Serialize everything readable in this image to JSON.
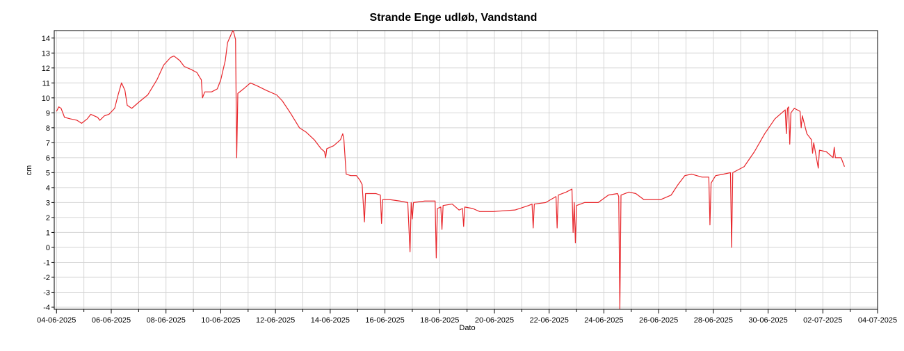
{
  "chart_data": {
    "type": "line",
    "title": "Strande Enge udløb, Vandstand",
    "x_label": "Dato",
    "y_label": "cm",
    "grid": true,
    "xlim": [
      "2025-06-03T22:00",
      "2025-07-04T00:00"
    ],
    "ylim": [
      -4.14,
      14.5
    ],
    "yticks": [
      -4,
      -3,
      -2,
      -1,
      0,
      1,
      2,
      3,
      4,
      5,
      6,
      7,
      8,
      9,
      10,
      11,
      12,
      13,
      14
    ],
    "xticks": [
      {
        "value": "2025-06-04",
        "label": "04-06-2025"
      },
      {
        "value": "2025-06-06",
        "label": "06-06-2025"
      },
      {
        "value": "2025-06-08",
        "label": "08-06-2025"
      },
      {
        "value": "2025-06-10",
        "label": "10-06-2025"
      },
      {
        "value": "2025-06-12",
        "label": "12-06-2025"
      },
      {
        "value": "2025-06-14",
        "label": "14-06-2025"
      },
      {
        "value": "2025-06-16",
        "label": "16-06-2025"
      },
      {
        "value": "2025-06-18",
        "label": "18-06-2025"
      },
      {
        "value": "2025-06-20",
        "label": "20-06-2025"
      },
      {
        "value": "2025-06-22",
        "label": "22-06-2025"
      },
      {
        "value": "2025-06-24",
        "label": "24-06-2025"
      },
      {
        "value": "2025-06-26",
        "label": "26-06-2025"
      },
      {
        "value": "2025-06-28",
        "label": "28-06-2025"
      },
      {
        "value": "2025-06-30",
        "label": "30-06-2025"
      },
      {
        "value": "2025-07-02",
        "label": "02-07-2025"
      },
      {
        "value": "2025-07-04",
        "label": "04-07-2025"
      }
    ],
    "x_minor_ticks": [
      "2025-06-05",
      "2025-06-07",
      "2025-06-09",
      "2025-06-11",
      "2025-06-13",
      "2025-06-15",
      "2025-06-17",
      "2025-06-19",
      "2025-06-21",
      "2025-06-23",
      "2025-06-25",
      "2025-06-27",
      "2025-06-29",
      "2025-07-01",
      "2025-07-03"
    ],
    "x": [
      "2025-06-04T00:00",
      "2025-06-04T02:00",
      "2025-06-04T04:00",
      "2025-06-04T07:00",
      "2025-06-04T12:00",
      "2025-06-04T18:00",
      "2025-06-04T22:00",
      "2025-06-05T03:00",
      "2025-06-05T06:00",
      "2025-06-05T12:00",
      "2025-06-05T14:00",
      "2025-06-05T18:00",
      "2025-06-05T22:00",
      "2025-06-06T03:00",
      "2025-06-06T06:00",
      "2025-06-06T09:00",
      "2025-06-06T12:00",
      "2025-06-06T14:00",
      "2025-06-06T18:00",
      "2025-06-07T00:00",
      "2025-06-07T08:00",
      "2025-06-07T16:00",
      "2025-06-07T22:00",
      "2025-06-08T04:00",
      "2025-06-08T07:00",
      "2025-06-08T12:00",
      "2025-06-08T16:00",
      "2025-06-08T22:00",
      "2025-06-09T03:00",
      "2025-06-09T07:00",
      "2025-06-09T08:00",
      "2025-06-09T10:00",
      "2025-06-09T16:00",
      "2025-06-09T21:00",
      "2025-06-10T00:00",
      "2025-06-10T04:00",
      "2025-06-10T06:00",
      "2025-06-10T10:00",
      "2025-06-10T11:00",
      "2025-06-10T13:00",
      "2025-06-10T14:00",
      "2025-06-10T15:00",
      "2025-06-10T20:00",
      "2025-06-11T02:00",
      "2025-06-11T08:00",
      "2025-06-11T16:00",
      "2025-06-12T01:00",
      "2025-06-12T06:00",
      "2025-06-12T13:00",
      "2025-06-12T21:00",
      "2025-06-13T03:00",
      "2025-06-13T10:00",
      "2025-06-13T16:00",
      "2025-06-13T19:00",
      "2025-06-13T20:00",
      "2025-06-13T21:00",
      "2025-06-14T03:00",
      "2025-06-14T09:00",
      "2025-06-14T11:00",
      "2025-06-14T12:00",
      "2025-06-14T14:00",
      "2025-06-14T18:00",
      "2025-06-14T23:00",
      "2025-06-15T02:00",
      "2025-06-15T04:00",
      "2025-06-15T06:00",
      "2025-06-15T07:00",
      "2025-06-15T16:00",
      "2025-06-15T20:00",
      "2025-06-15T21:00",
      "2025-06-15T22:00",
      "2025-06-16T04:00",
      "2025-06-16T13:00",
      "2025-06-16T20:00",
      "2025-06-16T22:00",
      "2025-06-16T23:00",
      "2025-06-17T00:00",
      "2025-06-17T01:00",
      "2025-06-17T11:00",
      "2025-06-17T20:00",
      "2025-06-17T21:00",
      "2025-06-17T22:00",
      "2025-06-18T01:00",
      "2025-06-18T02:00",
      "2025-06-18T03:00",
      "2025-06-18T11:00",
      "2025-06-18T17:00",
      "2025-06-18T20:00",
      "2025-06-18T21:00",
      "2025-06-18T22:00",
      "2025-06-19T05:00",
      "2025-06-19T11:00",
      "2025-06-19T23:00",
      "2025-06-20T18:00",
      "2025-06-21T06:00",
      "2025-06-21T09:00",
      "2025-06-21T10:00",
      "2025-06-21T11:00",
      "2025-06-21T21:00",
      "2025-06-22T06:00",
      "2025-06-22T07:00",
      "2025-06-22T08:00",
      "2025-06-22T15:00",
      "2025-06-22T20:00",
      "2025-06-22T21:00",
      "2025-06-22T22:00",
      "2025-06-22T23:00",
      "2025-06-23T00:00",
      "2025-06-23T07:00",
      "2025-06-23T19:00",
      "2025-06-24T04:00",
      "2025-06-24T12:00",
      "2025-06-24T13:00",
      "2025-06-24T14:00",
      "2025-06-24T15:00",
      "2025-06-24T22:00",
      "2025-06-25T04:00",
      "2025-06-25T11:00",
      "2025-06-26T02:00",
      "2025-06-26T11:00",
      "2025-06-26T17:00",
      "2025-06-26T23:00",
      "2025-06-27T05:00",
      "2025-06-27T14:00",
      "2025-06-27T20:00",
      "2025-06-27T21:00",
      "2025-06-27T22:00",
      "2025-06-28T02:00",
      "2025-06-28T09:00",
      "2025-06-28T15:00",
      "2025-06-28T16:00",
      "2025-06-28T17:00",
      "2025-06-29T03:00",
      "2025-06-29T12:00",
      "2025-06-29T21:00",
      "2025-06-30T06:00",
      "2025-06-30T15:00",
      "2025-06-30T16:00",
      "2025-06-30T17:00",
      "2025-06-30T18:00",
      "2025-06-30T19:00",
      "2025-06-30T20:00",
      "2025-06-30T23:00",
      "2025-07-01T04:00",
      "2025-07-01T05:00",
      "2025-07-01T06:00",
      "2025-07-01T10:00",
      "2025-07-01T14:00",
      "2025-07-01T15:00",
      "2025-07-01T16:00",
      "2025-07-01T20:00",
      "2025-07-01T21:00",
      "2025-07-02T03:00",
      "2025-07-02T09:00",
      "2025-07-02T10:00",
      "2025-07-02T11:00",
      "2025-07-02T16:00",
      "2025-07-02T19:00"
    ],
    "series": [
      {
        "color": "#e8262b",
        "values": [
          9.1,
          9.4,
          9.3,
          8.7,
          8.6,
          8.5,
          8.3,
          8.6,
          8.9,
          8.7,
          8.5,
          8.8,
          8.9,
          9.3,
          10.2,
          11.0,
          10.5,
          9.5,
          9.3,
          9.7,
          10.2,
          11.2,
          12.2,
          12.7,
          12.8,
          12.5,
          12.1,
          11.9,
          11.7,
          11.2,
          10.0,
          10.4,
          10.4,
          10.6,
          11.2,
          12.5,
          13.7,
          14.4,
          14.5,
          13.9,
          6.0,
          10.3,
          10.6,
          11.0,
          10.8,
          10.5,
          10.2,
          9.8,
          9.0,
          8.0,
          7.7,
          7.2,
          6.6,
          6.4,
          6.0,
          6.6,
          6.8,
          7.2,
          7.6,
          7.2,
          4.9,
          4.8,
          4.8,
          4.5,
          4.2,
          1.7,
          3.6,
          3.6,
          3.5,
          1.6,
          3.2,
          3.2,
          3.1,
          3.0,
          -0.3,
          3.0,
          1.9,
          3.0,
          3.1,
          3.1,
          -0.7,
          2.6,
          2.7,
          1.2,
          2.8,
          2.9,
          2.5,
          2.6,
          1.4,
          2.7,
          2.6,
          2.4,
          2.4,
          2.5,
          2.8,
          2.9,
          1.3,
          2.9,
          3.0,
          3.4,
          1.3,
          3.5,
          3.7,
          3.9,
          1.0,
          3.0,
          0.3,
          2.8,
          3.0,
          3.0,
          3.5,
          3.6,
          3.4,
          -4.1,
          3.5,
          3.7,
          3.6,
          3.2,
          3.2,
          3.5,
          4.2,
          4.8,
          4.9,
          4.7,
          4.7,
          1.5,
          4.3,
          4.8,
          4.9,
          5.0,
          0.0,
          5.0,
          5.4,
          6.4,
          7.6,
          8.6,
          9.2,
          7.6,
          9.3,
          9.4,
          6.9,
          9.0,
          9.3,
          9.1,
          8.0,
          8.8,
          7.6,
          7.2,
          6.3,
          7.0,
          5.3,
          6.5,
          6.4,
          6.0,
          6.7,
          6.0,
          6.0,
          5.4
        ]
      }
    ]
  }
}
